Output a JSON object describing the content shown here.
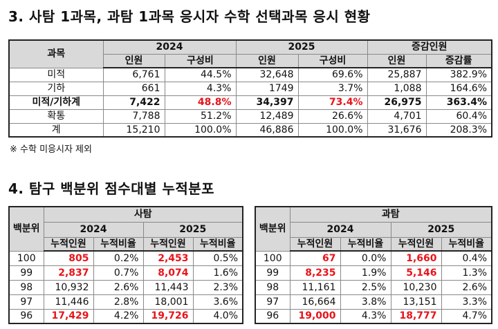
{
  "section1": {
    "title": "3. 사탐 1과목, 과탐 1과목 응시자 수학 선택과목 응시 현황",
    "table": {
      "header": {
        "subject": "과목",
        "year1": "2024",
        "year2": "2025",
        "change": "증감인원",
        "cols": [
          "인원",
          "구성비",
          "인원",
          "구성비",
          "인원",
          "증감률"
        ]
      },
      "rows": [
        [
          "미적",
          "6,761",
          "44.5%",
          "32,648",
          "69.6%",
          "25,887",
          "382.9%"
        ],
        [
          "기하",
          "661",
          "4.3%",
          "1749",
          "3.7%",
          "1,088",
          "164.6%"
        ],
        [
          "미적/기하계",
          "7,422",
          "48.8%",
          "34,397",
          "73.4%",
          "26,975",
          "363.4%"
        ],
        [
          "확통",
          "7,788",
          "51.2%",
          "12,489",
          "26.6%",
          "4,701",
          "60.4%"
        ],
        [
          "계",
          "15,210",
          "100.0%",
          "46,886",
          "100.0%",
          "31,676",
          "208.3%"
        ]
      ]
    },
    "note": "※ 수학 미응시자 제외"
  },
  "section2": {
    "title": "4. 탐구 백분위 점수대별 누적분포",
    "tables": [
      {
        "title": "사탐",
        "row_header": "백분위",
        "years": [
          "2024",
          "2025"
        ],
        "cols": [
          "누적인원",
          "누적비율",
          "누적인원",
          "누적비율"
        ],
        "rows": [
          [
            "100",
            "805",
            "0.2%",
            "2,453",
            "0.5%"
          ],
          [
            "99",
            "2,837",
            "0.7%",
            "8,074",
            "1.6%"
          ],
          [
            "98",
            "10,932",
            "2.6%",
            "11,443",
            "2.3%"
          ],
          [
            "97",
            "11,446",
            "2.8%",
            "18,001",
            "3.6%"
          ],
          [
            "96",
            "17,429",
            "4.2%",
            "19,726",
            "4.0%"
          ]
        ]
      },
      {
        "title": "과탐",
        "row_header": "백분위",
        "years": [
          "2024",
          "2025"
        ],
        "cols": [
          "누적인원",
          "누적비율",
          "누적인원",
          "누적비율"
        ],
        "rows": [
          [
            "100",
            "67",
            "0.0%",
            "1,660",
            "0.4%"
          ],
          [
            "99",
            "8,235",
            "1.9%",
            "5,146",
            "1.3%"
          ],
          [
            "98",
            "11,161",
            "2.5%",
            "10,230",
            "2.6%"
          ],
          [
            "97",
            "16,664",
            "3.8%",
            "13,151",
            "3.3%"
          ],
          [
            "96",
            "19,000",
            "4.3%",
            "18,777",
            "4.7%"
          ]
        ]
      }
    ]
  }
}
